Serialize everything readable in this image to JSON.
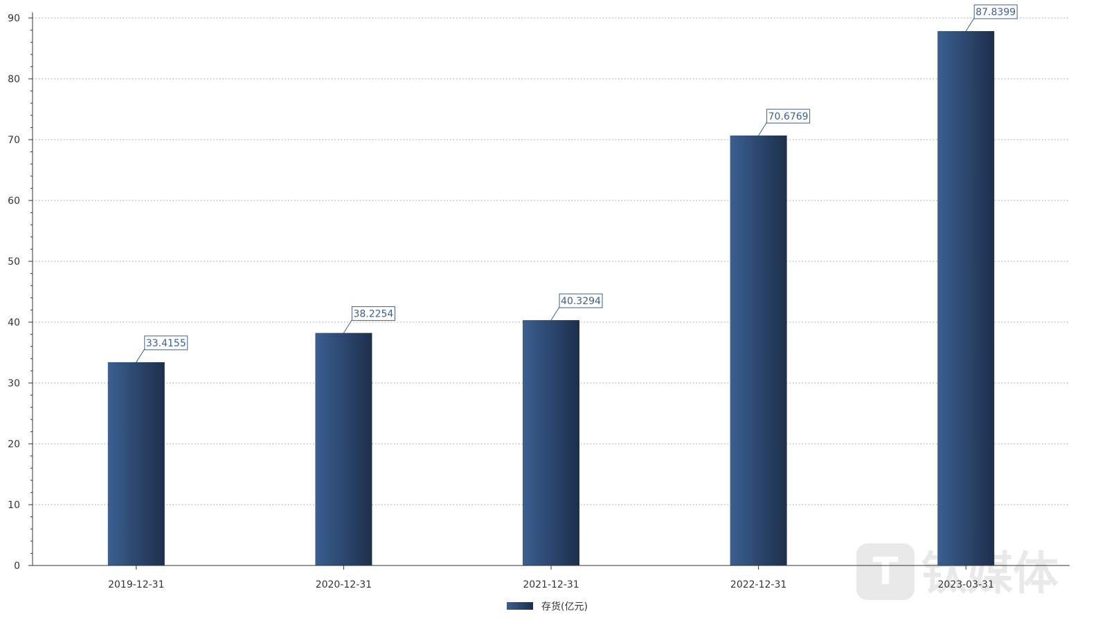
{
  "chart_data": {
    "type": "bar",
    "categories": [
      "2019-12-31",
      "2020-12-31",
      "2021-12-31",
      "2022-12-31",
      "2023-03-31"
    ],
    "series": [
      {
        "name": "存货(亿元)",
        "values": [
          33.4155,
          38.2254,
          40.3294,
          70.6769,
          87.8399
        ],
        "labels": [
          "33.4155",
          "38.2254",
          "40.3294",
          "70.6769",
          "87.8399"
        ]
      }
    ],
    "ylim": [
      0,
      90
    ],
    "yticks": [
      0,
      10,
      20,
      30,
      40,
      50,
      60,
      70,
      80,
      90
    ],
    "grid": true,
    "legend_position": "bottom-center",
    "colors": {
      "bar_light": "#3a5f91",
      "bar_dark": "#1e2f4b",
      "label_border": "#3a5f91",
      "label_text": "#3a5f91",
      "axis": "#333333",
      "grid": "#999999"
    }
  },
  "watermark": {
    "text": "钛媒体"
  }
}
